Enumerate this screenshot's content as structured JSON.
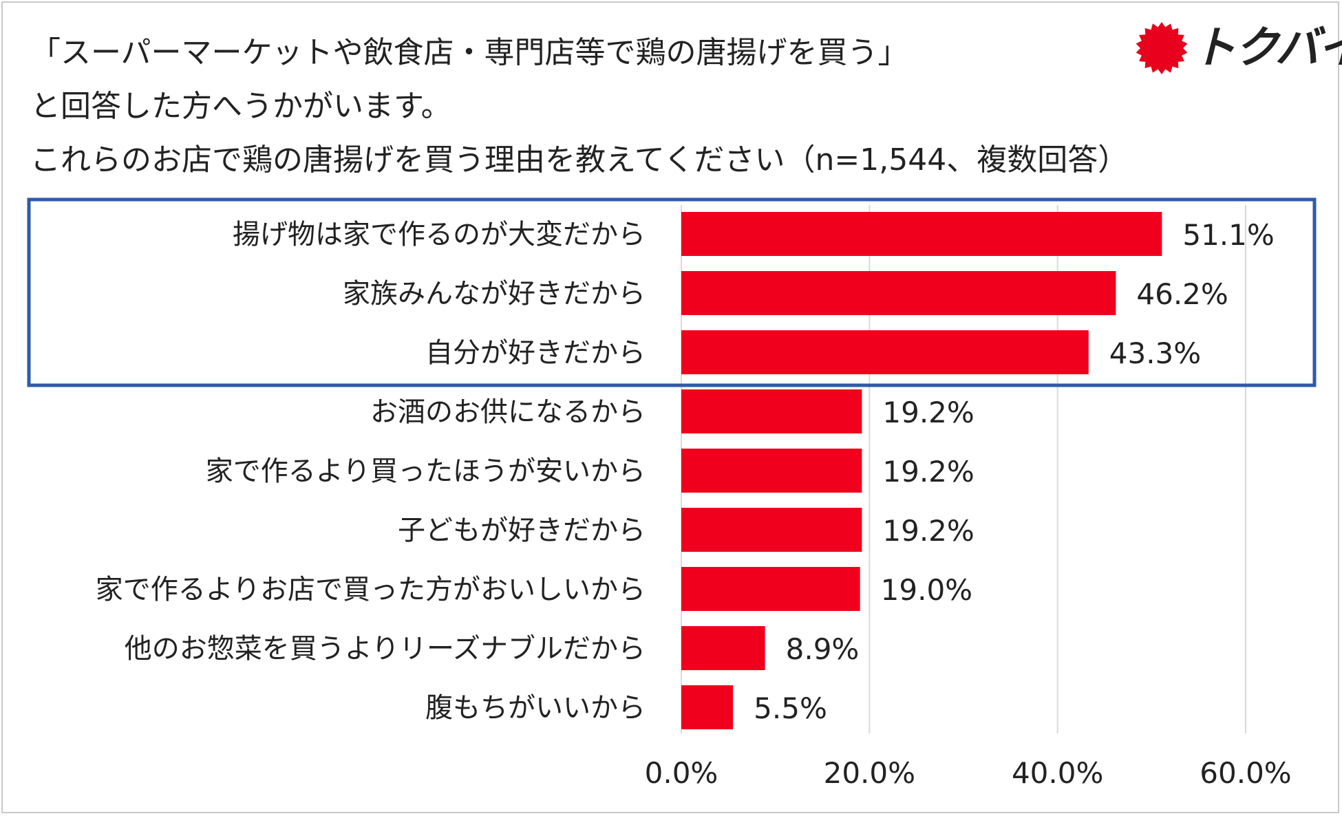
{
  "header": {
    "title_lines": [
      "「スーパーマーケットや飲食店・専門店等で鶏の唐揚げを買う」",
      "と回答した方へうかがいます。",
      "これらのお店で鶏の唐揚げを買う理由を教えてください（n=1,544、複数回答）"
    ]
  },
  "logo": {
    "text": "トクバイ",
    "color": "#e8001c"
  },
  "colors": {
    "bar": "#f0001c",
    "highlight_box": "#2f5aa8",
    "grid": "#d9d9d9"
  },
  "chart_data": {
    "type": "bar",
    "orientation": "horizontal",
    "title": "これらのお店で鶏の唐揚げを買う理由を教えてください（n=1,544、複数回答）",
    "categories": [
      "揚げ物は家で作るのが大変だから",
      "家族みんなが好きだから",
      "自分が好きだから",
      "お酒のお供になるから",
      "家で作るより買ったほうが安いから",
      "子どもが好きだから",
      "家で作るよりお店で買った方がおいしいから",
      "他のお惣菜を買うよりリーズナブルだから",
      "腹もちがいいから"
    ],
    "values": [
      51.1,
      46.2,
      43.3,
      19.2,
      19.2,
      19.2,
      19.0,
      8.9,
      5.5
    ],
    "value_labels": [
      "51.1%",
      "46.2%",
      "43.3%",
      "19.2%",
      "19.2%",
      "19.2%",
      "19.0%",
      "8.9%",
      "5.5%"
    ],
    "xlim": [
      0,
      60
    ],
    "x_ticks": [
      0,
      20,
      40,
      60
    ],
    "x_tick_labels": [
      "0.0%",
      "20.0%",
      "40.0%",
      "60.0%"
    ],
    "grid": true,
    "highlighted_categories": [
      0,
      1,
      2
    ]
  }
}
